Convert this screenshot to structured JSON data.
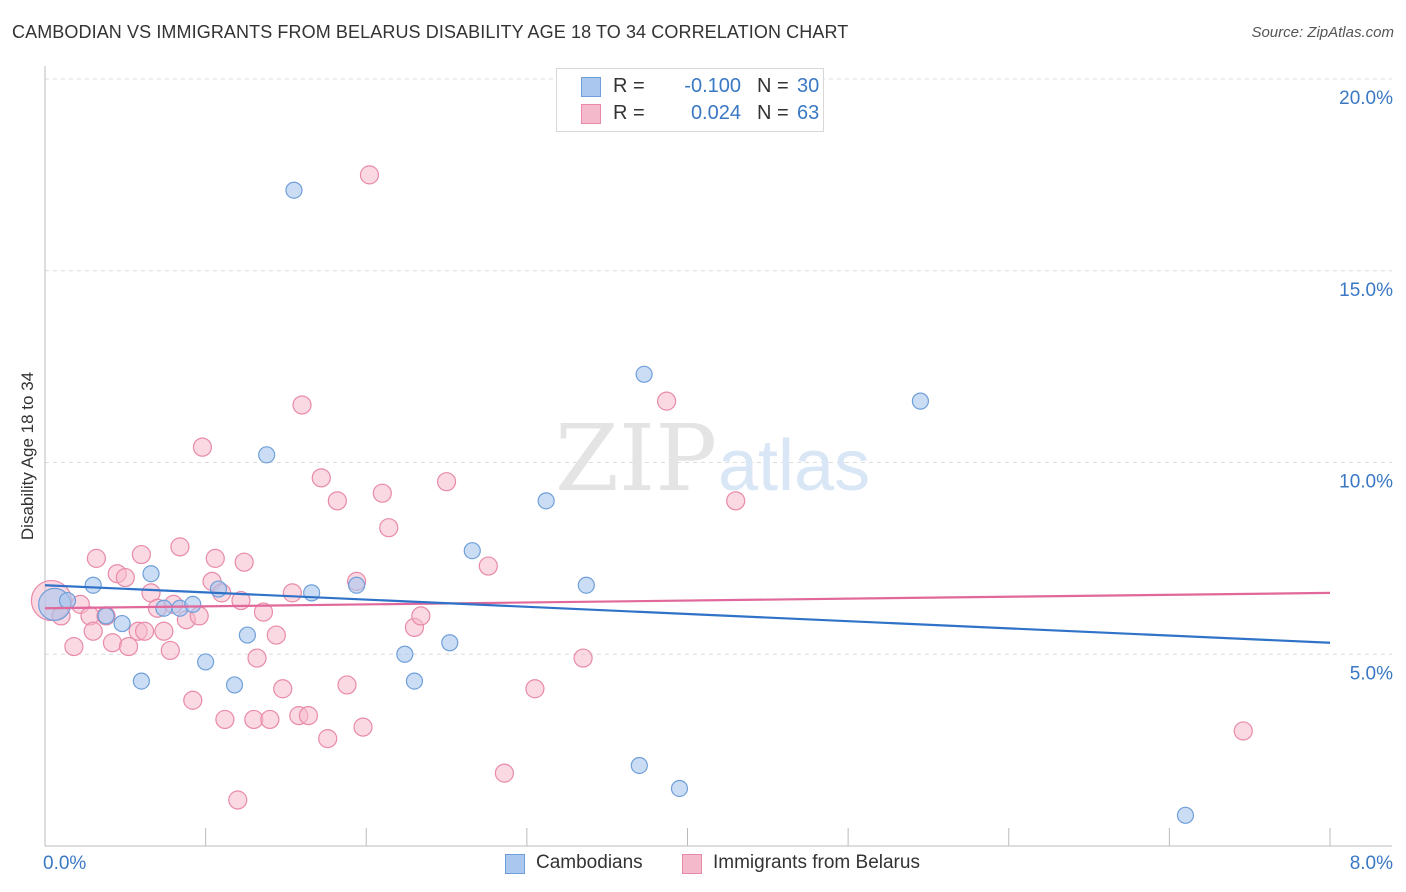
{
  "title": "CAMBODIAN VS IMMIGRANTS FROM BELARUS DISABILITY AGE 18 TO 34 CORRELATION CHART",
  "source": "Source: ZipAtlas.com",
  "watermark": {
    "zip": "ZIP",
    "atlas": "atlas"
  },
  "colors": {
    "blue_fill": "#a9c7ef",
    "blue_stroke": "#6f9fd9",
    "blue_line": "#2f72c8",
    "pink_fill": "#f5b9cc",
    "pink_stroke": "#e98aa8",
    "pink_line": "#e0689a",
    "value_text": "#3a78c4",
    "grid": "#dcdcdc"
  },
  "legend": {
    "rows": [
      {
        "r_label": "R =",
        "r_value": "-0.100",
        "n_label": "N =",
        "n_value": "30"
      },
      {
        "r_label": "R =",
        "r_value": "0.024",
        "n_label": "N =",
        "n_value": "63"
      }
    ]
  },
  "bottom_legend": {
    "series1": "Cambodians",
    "series2": "Immigrants from Belarus"
  },
  "chart_data": {
    "type": "scatter",
    "title": "CAMBODIAN VS IMMIGRANTS FROM BELARUS DISABILITY AGE 18 TO 34 CORRELATION CHART",
    "xlabel": "",
    "ylabel": "Disability Age 18 to 34",
    "xlim": [
      0,
      8
    ],
    "ylim": [
      0,
      20
    ],
    "x_tick_labels": [
      "0.0%",
      "8.0%"
    ],
    "y_ticks": [
      5,
      10,
      15,
      20
    ],
    "y_tick_labels": [
      "5.0%",
      "10.0%",
      "15.0%",
      "20.0%"
    ],
    "grid": true,
    "series": [
      {
        "name": "Cambodians",
        "trend": {
          "x": [
            0,
            8
          ],
          "y": [
            6.8,
            5.3
          ]
        },
        "points": [
          {
            "x": 0.06,
            "y": 6.3,
            "big": true
          },
          {
            "x": 0.14,
            "y": 6.4
          },
          {
            "x": 0.3,
            "y": 6.8
          },
          {
            "x": 0.38,
            "y": 6.0
          },
          {
            "x": 0.48,
            "y": 5.8
          },
          {
            "x": 0.6,
            "y": 4.3
          },
          {
            "x": 0.66,
            "y": 7.1
          },
          {
            "x": 0.74,
            "y": 6.2
          },
          {
            "x": 0.84,
            "y": 6.2
          },
          {
            "x": 0.92,
            "y": 6.3
          },
          {
            "x": 1.0,
            "y": 4.8
          },
          {
            "x": 1.08,
            "y": 6.7
          },
          {
            "x": 1.18,
            "y": 4.2
          },
          {
            "x": 1.26,
            "y": 5.5
          },
          {
            "x": 1.38,
            "y": 10.2
          },
          {
            "x": 1.55,
            "y": 17.1
          },
          {
            "x": 1.66,
            "y": 6.6
          },
          {
            "x": 1.94,
            "y": 6.8
          },
          {
            "x": 2.24,
            "y": 5.0
          },
          {
            "x": 2.3,
            "y": 4.3
          },
          {
            "x": 2.52,
            "y": 5.3
          },
          {
            "x": 2.66,
            "y": 7.7
          },
          {
            "x": 3.12,
            "y": 9.0
          },
          {
            "x": 3.37,
            "y": 6.8
          },
          {
            "x": 3.7,
            "y": 2.1
          },
          {
            "x": 3.73,
            "y": 12.3
          },
          {
            "x": 3.95,
            "y": 1.5
          },
          {
            "x": 5.45,
            "y": 11.6
          },
          {
            "x": 7.1,
            "y": 0.8
          }
        ]
      },
      {
        "name": "Immigrants from Belarus",
        "trend": {
          "x": [
            0,
            8
          ],
          "y": [
            6.2,
            6.6
          ]
        },
        "points": [
          {
            "x": 0.04,
            "y": 6.4,
            "big": true
          },
          {
            "x": 0.1,
            "y": 6.0
          },
          {
            "x": 0.18,
            "y": 5.2
          },
          {
            "x": 0.22,
            "y": 6.3
          },
          {
            "x": 0.28,
            "y": 6.0
          },
          {
            "x": 0.3,
            "y": 5.6
          },
          {
            "x": 0.32,
            "y": 7.5
          },
          {
            "x": 0.38,
            "y": 6.0
          },
          {
            "x": 0.42,
            "y": 5.3
          },
          {
            "x": 0.45,
            "y": 7.1
          },
          {
            "x": 0.5,
            "y": 7.0
          },
          {
            "x": 0.52,
            "y": 5.2
          },
          {
            "x": 0.58,
            "y": 5.6
          },
          {
            "x": 0.6,
            "y": 7.6
          },
          {
            "x": 0.62,
            "y": 5.6
          },
          {
            "x": 0.66,
            "y": 6.6
          },
          {
            "x": 0.7,
            "y": 6.2
          },
          {
            "x": 0.74,
            "y": 5.6
          },
          {
            "x": 0.78,
            "y": 5.1
          },
          {
            "x": 0.8,
            "y": 6.3
          },
          {
            "x": 0.84,
            "y": 7.8
          },
          {
            "x": 0.88,
            "y": 5.9
          },
          {
            "x": 0.92,
            "y": 3.8
          },
          {
            "x": 0.96,
            "y": 6.0
          },
          {
            "x": 0.98,
            "y": 10.4
          },
          {
            "x": 1.04,
            "y": 6.9
          },
          {
            "x": 1.06,
            "y": 7.5
          },
          {
            "x": 1.1,
            "y": 6.6
          },
          {
            "x": 1.12,
            "y": 3.3
          },
          {
            "x": 1.2,
            "y": 1.2
          },
          {
            "x": 1.22,
            "y": 6.4
          },
          {
            "x": 1.24,
            "y": 7.4
          },
          {
            "x": 1.3,
            "y": 3.3
          },
          {
            "x": 1.32,
            "y": 4.9
          },
          {
            "x": 1.36,
            "y": 6.1
          },
          {
            "x": 1.4,
            "y": 3.3
          },
          {
            "x": 1.44,
            "y": 5.5
          },
          {
            "x": 1.48,
            "y": 4.1
          },
          {
            "x": 1.54,
            "y": 6.6
          },
          {
            "x": 1.58,
            "y": 3.4
          },
          {
            "x": 1.6,
            "y": 11.5
          },
          {
            "x": 1.64,
            "y": 3.4
          },
          {
            "x": 1.72,
            "y": 9.6
          },
          {
            "x": 1.76,
            "y": 2.8
          },
          {
            "x": 1.82,
            "y": 9.0
          },
          {
            "x": 1.88,
            "y": 4.2
          },
          {
            "x": 1.94,
            "y": 6.9
          },
          {
            "x": 1.98,
            "y": 3.1
          },
          {
            "x": 2.02,
            "y": 17.5
          },
          {
            "x": 2.1,
            "y": 9.2
          },
          {
            "x": 2.14,
            "y": 8.3
          },
          {
            "x": 2.3,
            "y": 5.7
          },
          {
            "x": 2.34,
            "y": 6.0
          },
          {
            "x": 2.5,
            "y": 9.5
          },
          {
            "x": 2.76,
            "y": 7.3
          },
          {
            "x": 2.86,
            "y": 1.9
          },
          {
            "x": 3.05,
            "y": 4.1
          },
          {
            "x": 3.35,
            "y": 4.9
          },
          {
            "x": 3.87,
            "y": 11.6
          },
          {
            "x": 4.3,
            "y": 9.0
          },
          {
            "x": 7.46,
            "y": 3.0
          }
        ]
      }
    ]
  }
}
